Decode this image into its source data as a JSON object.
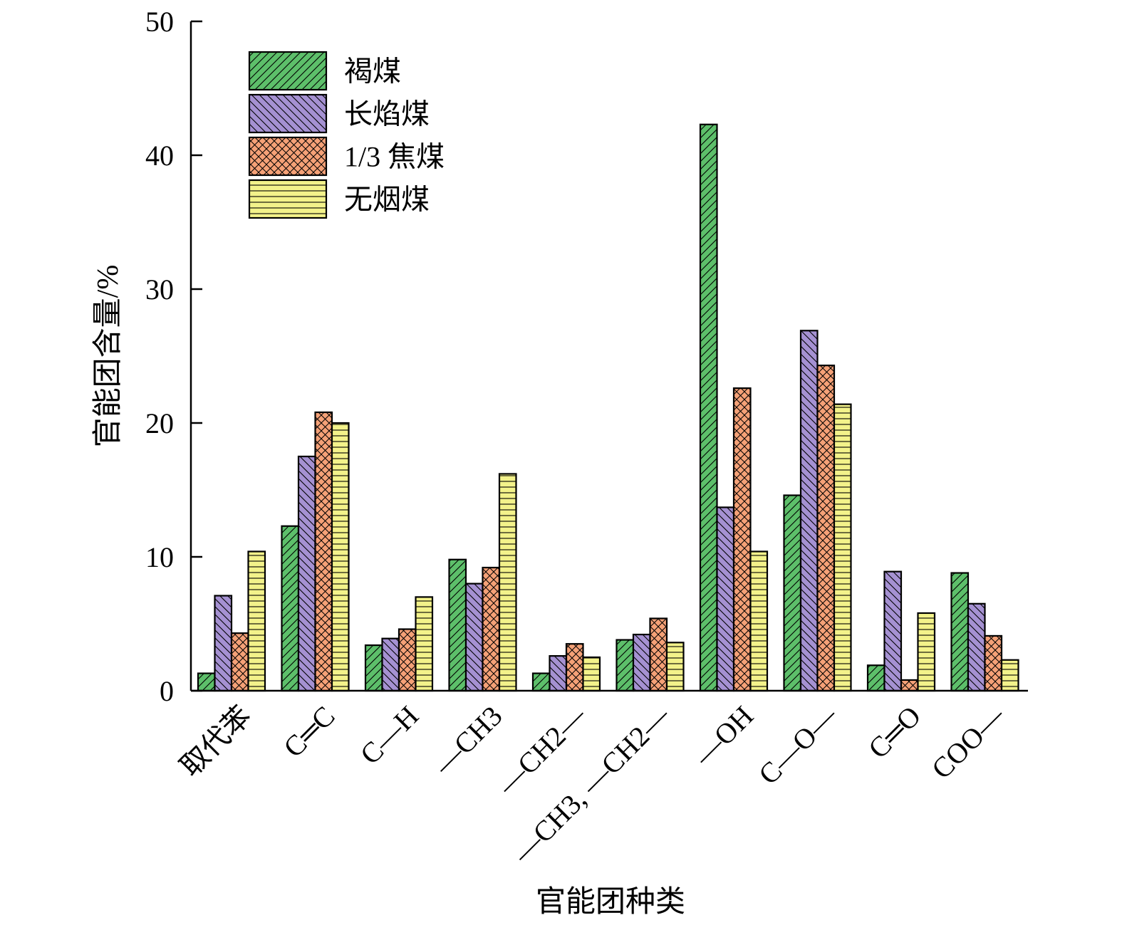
{
  "chart_data": {
    "type": "bar",
    "title": "",
    "xlabel": "官能团种类",
    "ylabel": "官能团含量/%",
    "ylim": [
      0,
      50
    ],
    "yticks": [
      0,
      10,
      20,
      30,
      40,
      50
    ],
    "grid": false,
    "legend_position": "top-left",
    "categories": [
      "取代苯",
      "C═C",
      "C—H",
      "—CH3",
      "—CH2—",
      "—CH3, —CH2—",
      "—OH",
      "C—O—",
      "C═O",
      "COO—"
    ],
    "series": [
      {
        "name": "褐煤",
        "color": "#5dbf6a",
        "pattern": "diagonal-right",
        "values": [
          1.3,
          12.3,
          3.4,
          9.8,
          1.3,
          3.8,
          42.3,
          14.6,
          1.9,
          8.8
        ]
      },
      {
        "name": "长焰煤",
        "color": "#a591d2",
        "pattern": "diagonal-left",
        "values": [
          7.1,
          17.5,
          3.9,
          8.0,
          2.6,
          4.2,
          13.7,
          26.9,
          8.9,
          6.5
        ]
      },
      {
        "name": "1/3 焦煤",
        "color": "#f5a177",
        "pattern": "crosshatch",
        "values": [
          4.3,
          20.8,
          4.6,
          9.2,
          3.5,
          5.4,
          22.6,
          24.3,
          0.8,
          4.1
        ]
      },
      {
        "name": "无烟煤",
        "color": "#f3f28a",
        "pattern": "horizontal",
        "values": [
          10.4,
          20.0,
          7.0,
          16.2,
          2.5,
          3.6,
          10.4,
          21.4,
          5.8,
          2.3
        ]
      }
    ]
  }
}
